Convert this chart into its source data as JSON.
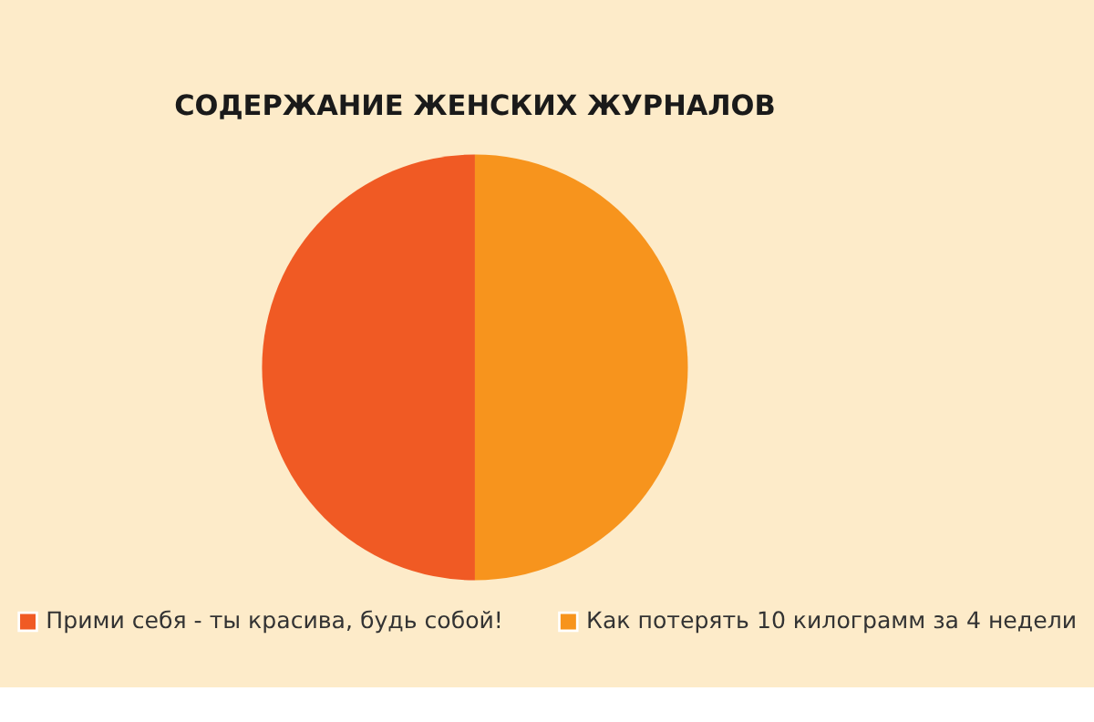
{
  "chart_data": {
    "type": "pie",
    "title": "СОДЕРЖАНИЕ ЖЕНСКИХ ЖУРНАЛОВ",
    "categories": [
      "Прими себя - ты красива, будь собой!",
      "Как потерять 10 килограмм за 4 недели"
    ],
    "values": [
      50,
      50
    ],
    "colors": [
      "#f05a24",
      "#f7941d"
    ],
    "legend": "bottom"
  }
}
